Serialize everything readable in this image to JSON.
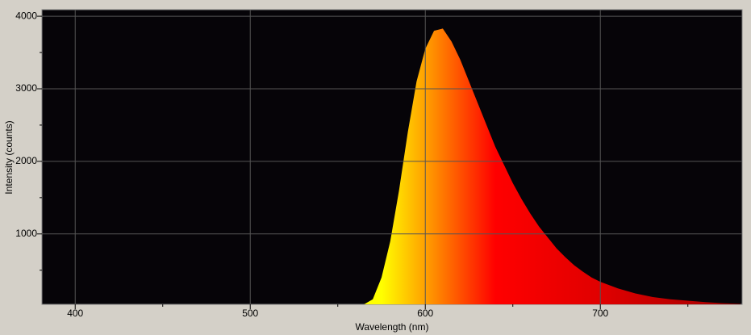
{
  "chart_data": {
    "type": "area",
    "x_label": "Wavelength (nm)",
    "y_label": "Intensity (counts)",
    "x": [
      565,
      570,
      575,
      580,
      585,
      590,
      595,
      600,
      605,
      610,
      615,
      620,
      625,
      630,
      635,
      640,
      645,
      650,
      655,
      660,
      665,
      670,
      675,
      680,
      685,
      690,
      695,
      700,
      710,
      720,
      730,
      740,
      750,
      760,
      770,
      780
    ],
    "values": [
      30,
      100,
      400,
      900,
      1600,
      2400,
      3100,
      3550,
      3800,
      3830,
      3650,
      3400,
      3100,
      2800,
      2500,
      2200,
      1950,
      1700,
      1480,
      1280,
      1100,
      950,
      800,
      680,
      570,
      480,
      400,
      340,
      250,
      180,
      130,
      100,
      80,
      60,
      45,
      35
    ],
    "gradient": [
      {
        "x": 575,
        "color": "#ffff00"
      },
      {
        "x": 600,
        "color": "#ffa000"
      },
      {
        "x": 640,
        "color": "#ff0000"
      },
      {
        "x": 700,
        "color": "#e00000"
      },
      {
        "x": 780,
        "color": "#a00000"
      }
    ],
    "xlim": [
      381,
      781
    ],
    "ylim": [
      30,
      4090
    ],
    "xticks": [
      400,
      500,
      600,
      700
    ],
    "yticks": [
      1000,
      2000,
      3000,
      4000
    ],
    "xminor": [
      450,
      550,
      650,
      750
    ],
    "yminor": [
      500,
      1500,
      2500,
      3500
    ],
    "grid": true
  }
}
